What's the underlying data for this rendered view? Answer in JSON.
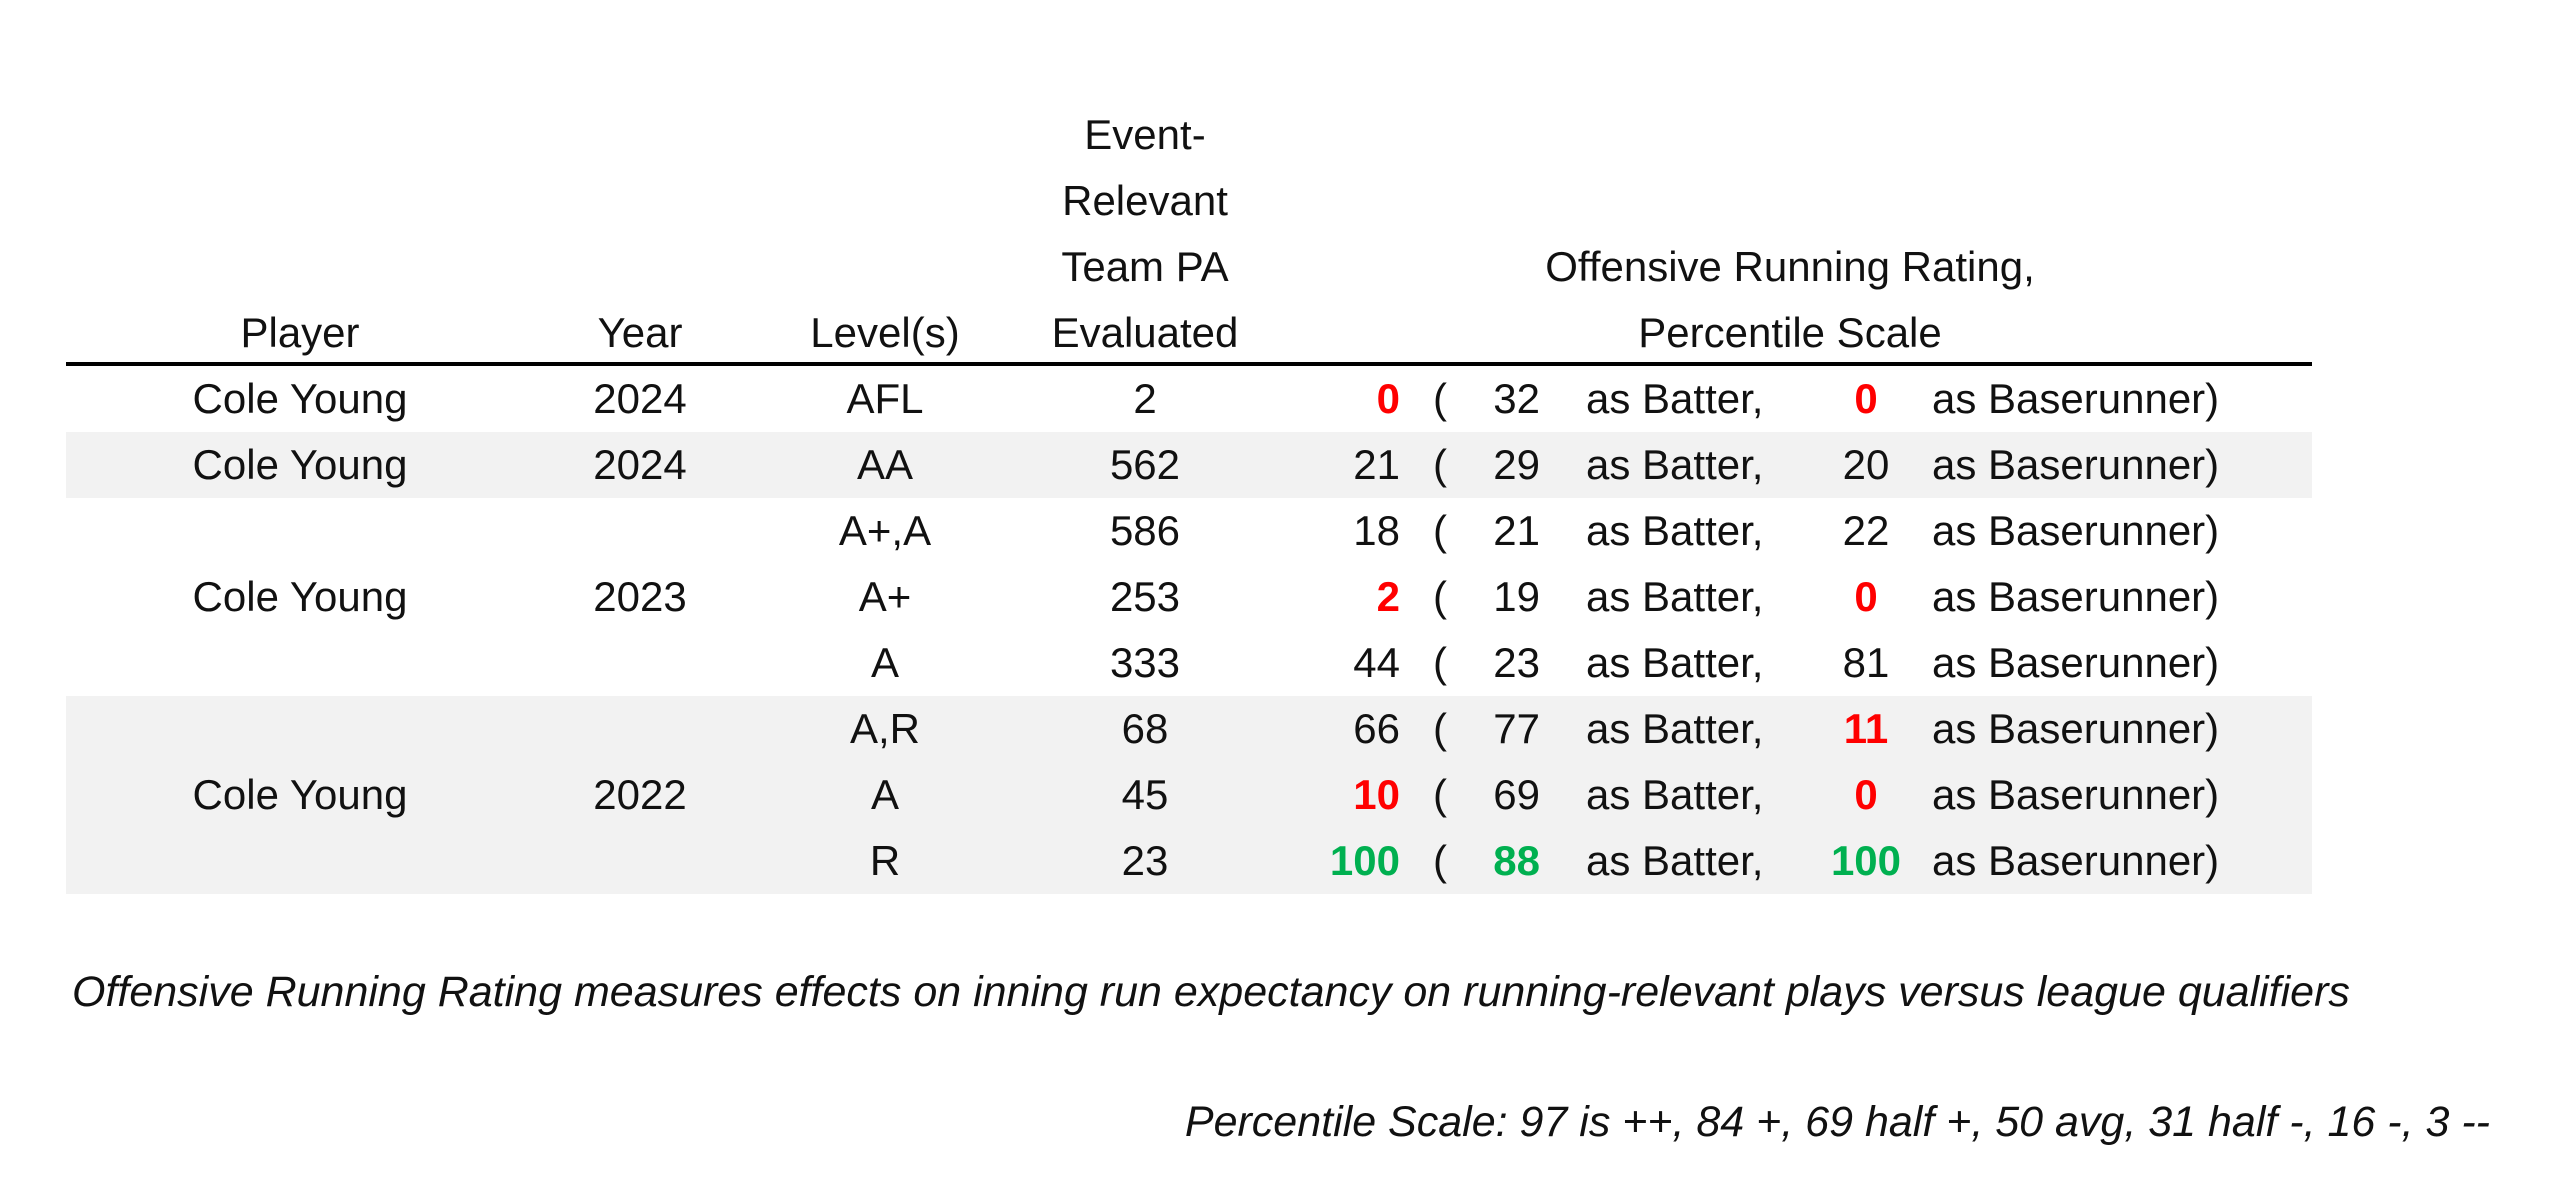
{
  "headers": {
    "player": "Player",
    "year": "Year",
    "levels": "Level(s)",
    "pa_line1": "Event-",
    "pa_line2": "Relevant",
    "pa_line3": "Team PA",
    "pa_line4": "Evaluated",
    "rating_line1": "Offensive Running Rating,",
    "rating_line2": "Percentile Scale"
  },
  "groups": [
    {
      "player": "Cole Young",
      "year": "2024",
      "shaded": false
    },
    {
      "player": "Cole Young",
      "year": "2024",
      "shaded": true
    },
    {
      "player": "Cole Young",
      "year": "2023",
      "shaded": false
    },
    {
      "player": "Cole Young",
      "year": "2022",
      "shaded": true
    }
  ],
  "rows": [
    {
      "level": "AFL",
      "pa": "2",
      "overall": "0",
      "overall_color": "red",
      "open": "(",
      "batter": "32",
      "batter_color": "",
      "as_batter": "as Batter,",
      "runner": "0",
      "runner_color": "red",
      "as_runner": "as Baserunner)"
    },
    {
      "level": "AA",
      "pa": "562",
      "overall": "21",
      "overall_color": "",
      "open": "(",
      "batter": "29",
      "batter_color": "",
      "as_batter": "as Batter,",
      "runner": "20",
      "runner_color": "",
      "as_runner": "as Baserunner)"
    },
    {
      "level": "A+,A",
      "pa": "586",
      "overall": "18",
      "overall_color": "",
      "open": "(",
      "batter": "21",
      "batter_color": "",
      "as_batter": "as Batter,",
      "runner": "22",
      "runner_color": "",
      "as_runner": "as Baserunner)"
    },
    {
      "level": "A+",
      "pa": "253",
      "overall": "2",
      "overall_color": "red",
      "open": "(",
      "batter": "19",
      "batter_color": "",
      "as_batter": "as Batter,",
      "runner": "0",
      "runner_color": "red",
      "as_runner": "as Baserunner)"
    },
    {
      "level": "A",
      "pa": "333",
      "overall": "44",
      "overall_color": "",
      "open": "(",
      "batter": "23",
      "batter_color": "",
      "as_batter": "as Batter,",
      "runner": "81",
      "runner_color": "",
      "as_runner": "as Baserunner)"
    },
    {
      "level": "A,R",
      "pa": "68",
      "overall": "66",
      "overall_color": "",
      "open": "(",
      "batter": "77",
      "batter_color": "",
      "as_batter": "as Batter,",
      "runner": "11",
      "runner_color": "red",
      "as_runner": "as Baserunner)"
    },
    {
      "level": "A",
      "pa": "45",
      "overall": "10",
      "overall_color": "red",
      "open": "(",
      "batter": "69",
      "batter_color": "",
      "as_batter": "as Batter,",
      "runner": "0",
      "runner_color": "red",
      "as_runner": "as Baserunner)"
    },
    {
      "level": "R",
      "pa": "23",
      "overall": "100",
      "overall_color": "green",
      "open": "(",
      "batter": "88",
      "batter_color": "green",
      "as_batter": "as Batter,",
      "runner": "100",
      "runner_color": "green",
      "as_runner": "as Baserunner)"
    }
  ],
  "notes": {
    "definition": "Offensive Running Rating measures effects on inning run expectancy on running-relevant plays versus league qualifiers",
    "scale": "Percentile Scale: 97 is ++, 84 +, 69 half +, 50 avg, 31 half -, 16 -, 3 --"
  },
  "colors": {
    "red": "#ff0000",
    "green": "#00b050",
    "shade": "#f2f2f2"
  }
}
